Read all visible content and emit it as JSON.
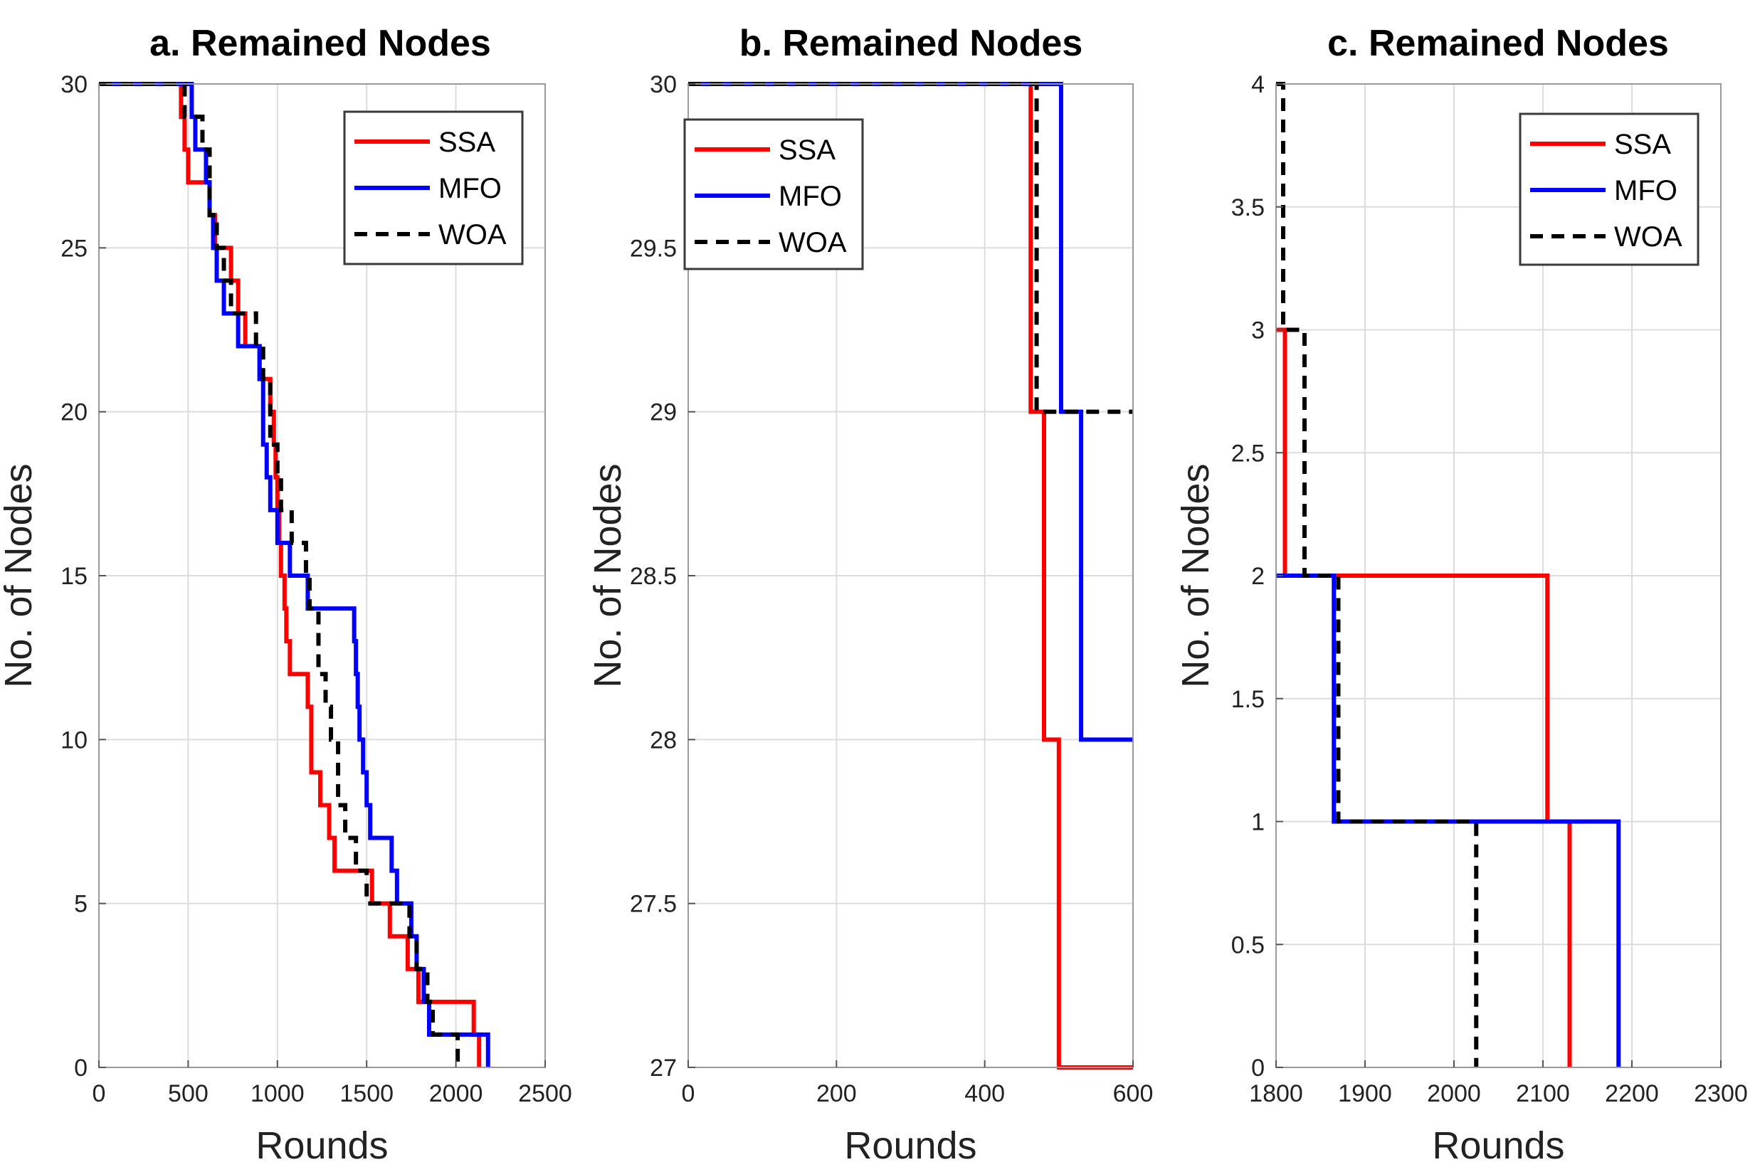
{
  "chart_data": [
    {
      "type": "line",
      "step": true,
      "title": "a. Remained Nodes",
      "xlabel": "Rounds",
      "ylabel": "No. of Nodes",
      "xlim": [
        0,
        2500
      ],
      "ylim": [
        0,
        30
      ],
      "xticks": [
        0,
        500,
        1000,
        1500,
        2000,
        2500
      ],
      "yticks": [
        0,
        5,
        10,
        15,
        20,
        25,
        30
      ],
      "xtick_labels": [
        "0",
        "500",
        "1000",
        "1500",
        "2000",
        "2500"
      ],
      "ytick_labels": [
        "0",
        "5",
        "10",
        "15",
        "20",
        "25",
        "30"
      ],
      "grid": true,
      "legend_position": "top-right",
      "series": [
        {
          "name": "SSA",
          "color": "#ff0000",
          "style": "solid",
          "x": [
            0,
            460,
            480,
            500,
            600,
            620,
            640,
            650,
            700,
            740,
            780,
            820,
            900,
            960,
            980,
            990,
            1000,
            1010,
            1020,
            1040,
            1050,
            1070,
            1150,
            1170,
            1190,
            1240,
            1290,
            1320,
            1350,
            1410,
            1530,
            1550,
            1630,
            1710,
            1730,
            1790,
            1810,
            2100,
            2110,
            2130
          ],
          "y": [
            30,
            29,
            28,
            27,
            27,
            26,
            26,
            25,
            25,
            24,
            23,
            22,
            21,
            20,
            19,
            18,
            17,
            16,
            15,
            14,
            13,
            12,
            12,
            11,
            9,
            8,
            7,
            6,
            6,
            6,
            5,
            5,
            4,
            4,
            3,
            2,
            2,
            1,
            1,
            0
          ]
        },
        {
          "name": "MFO",
          "color": "#0000ff",
          "style": "solid",
          "x": [
            0,
            500,
            520,
            540,
            560,
            600,
            620,
            640,
            660,
            700,
            740,
            780,
            880,
            900,
            920,
            940,
            960,
            980,
            1000,
            1020,
            1050,
            1070,
            1150,
            1170,
            1210,
            1230,
            1430,
            1440,
            1450,
            1460,
            1480,
            1500,
            1520,
            1640,
            1670,
            1720,
            1750,
            1780,
            1820,
            1850,
            2020,
            2170,
            2180
          ],
          "y": [
            30,
            30,
            29,
            28,
            28,
            27,
            26,
            25,
            24,
            23,
            23,
            22,
            22,
            21,
            19,
            18,
            17,
            17,
            16,
            16,
            16,
            15,
            15,
            14,
            14,
            14,
            13,
            12,
            11,
            10,
            9,
            8,
            7,
            6,
            5,
            5,
            4,
            3,
            2,
            1,
            1,
            1,
            0
          ]
        },
        {
          "name": "WOA",
          "color": "#000000",
          "style": "dashed",
          "x": [
            0,
            470,
            480,
            560,
            580,
            620,
            660,
            700,
            740,
            880,
            920,
            960,
            1000,
            1020,
            1040,
            1060,
            1080,
            1120,
            1160,
            1180,
            1200,
            1230,
            1270,
            1300,
            1340,
            1380,
            1440,
            1460,
            1480,
            1500,
            1560,
            1740,
            1780,
            1840,
            1870,
            2000,
            2010
          ],
          "y": [
            30,
            30,
            29,
            29,
            28,
            26,
            25,
            24,
            23,
            22,
            21,
            19,
            18,
            17,
            17,
            17,
            16,
            16,
            15,
            14,
            14,
            12,
            11,
            10,
            8,
            7,
            6,
            6,
            6,
            5,
            5,
            4,
            3,
            2,
            1,
            1,
            0
          ]
        }
      ]
    },
    {
      "type": "line",
      "step": true,
      "title": "b. Remained Nodes",
      "xlabel": "Rounds",
      "ylabel": "No. of Nodes",
      "xlim": [
        0,
        600
      ],
      "ylim": [
        27,
        30
      ],
      "xticks": [
        0,
        200,
        400,
        600
      ],
      "yticks": [
        27,
        27.5,
        28,
        28.5,
        29,
        29.5,
        30
      ],
      "xtick_labels": [
        "0",
        "200",
        "400",
        "600"
      ],
      "ytick_labels": [
        "27",
        "27.5",
        "28",
        "28.5",
        "29",
        "29.5",
        "30"
      ],
      "grid": true,
      "legend_position": "top-left",
      "series": [
        {
          "name": "SSA",
          "color": "#ff0000",
          "style": "solid",
          "x": [
            0,
            462,
            480,
            500,
            600
          ],
          "y": [
            30,
            29,
            28,
            27,
            27
          ]
        },
        {
          "name": "MFO",
          "color": "#0000ff",
          "style": "solid",
          "x": [
            0,
            503,
            530,
            600
          ],
          "y": [
            30,
            29,
            28,
            28
          ]
        },
        {
          "name": "WOA",
          "color": "#000000",
          "style": "dashed",
          "x": [
            0,
            470,
            600
          ],
          "y": [
            30,
            29,
            29
          ]
        }
      ]
    },
    {
      "type": "line",
      "step": true,
      "title": "c. Remained Nodes",
      "xlabel": "Rounds",
      "ylabel": "No. of Nodes",
      "xlim": [
        1800,
        2300
      ],
      "ylim": [
        0,
        4
      ],
      "xticks": [
        1800,
        1900,
        2000,
        2100,
        2200,
        2300
      ],
      "yticks": [
        0,
        0.5,
        1,
        1.5,
        2,
        2.5,
        3,
        3.5,
        4
      ],
      "xtick_labels": [
        "1800",
        "1900",
        "2000",
        "2100",
        "2200",
        "2300"
      ],
      "ytick_labels": [
        "0",
        "0.5",
        "1",
        "1.5",
        "2",
        "2.5",
        "3",
        "3.5",
        "4"
      ],
      "grid": true,
      "legend_position": "top-right",
      "series": [
        {
          "name": "SSA",
          "color": "#ff0000",
          "style": "solid",
          "x": [
            1800,
            1806,
            1810,
            2105,
            2130
          ],
          "y": [
            3,
            3,
            2,
            1,
            0
          ]
        },
        {
          "name": "MFO",
          "color": "#0000ff",
          "style": "solid",
          "x": [
            1800,
            1865,
            2185
          ],
          "y": [
            2,
            1,
            0
          ]
        },
        {
          "name": "WOA",
          "color": "#000000",
          "style": "dashed",
          "x": [
            1800,
            1808,
            1832,
            1870,
            2025
          ],
          "y": [
            4,
            3,
            2,
            1,
            0
          ]
        }
      ]
    }
  ]
}
